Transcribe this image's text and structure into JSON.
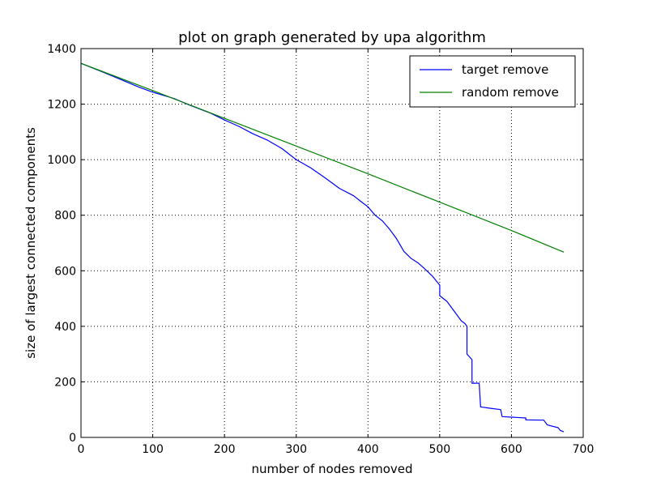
{
  "chart_data": {
    "type": "line",
    "title": "plot on graph generated by upa algorithm",
    "xlabel": "number of nodes removed",
    "ylabel": "size of largest connected components",
    "xlim": [
      0,
      700
    ],
    "ylim": [
      0,
      1400
    ],
    "xticks": [
      0,
      100,
      200,
      300,
      400,
      500,
      600,
      700
    ],
    "yticks": [
      0,
      200,
      400,
      600,
      800,
      1000,
      1200,
      1400
    ],
    "grid": true,
    "legend_position": "top-right",
    "series": [
      {
        "name": "target remove",
        "color": "#0000ff",
        "points": [
          [
            0,
            1347
          ],
          [
            30,
            1316
          ],
          [
            60,
            1284
          ],
          [
            80,
            1262
          ],
          [
            100,
            1243
          ],
          [
            130,
            1220
          ],
          [
            150,
            1198
          ],
          [
            180,
            1168
          ],
          [
            200,
            1143
          ],
          [
            220,
            1120
          ],
          [
            240,
            1093
          ],
          [
            260,
            1070
          ],
          [
            280,
            1040
          ],
          [
            300,
            1000
          ],
          [
            320,
            971
          ],
          [
            340,
            935
          ],
          [
            360,
            897
          ],
          [
            380,
            870
          ],
          [
            390,
            850
          ],
          [
            400,
            830
          ],
          [
            410,
            800
          ],
          [
            420,
            780
          ],
          [
            430,
            750
          ],
          [
            440,
            715
          ],
          [
            450,
            670
          ],
          [
            460,
            645
          ],
          [
            470,
            628
          ],
          [
            480,
            605
          ],
          [
            490,
            580
          ],
          [
            500,
            548
          ],
          [
            500,
            510
          ],
          [
            510,
            490
          ],
          [
            520,
            455
          ],
          [
            530,
            420
          ],
          [
            535,
            410
          ],
          [
            538,
            400
          ],
          [
            538,
            300
          ],
          [
            545,
            280
          ],
          [
            545,
            195
          ],
          [
            555,
            195
          ],
          [
            557,
            110
          ],
          [
            570,
            105
          ],
          [
            585,
            100
          ],
          [
            587,
            75
          ],
          [
            600,
            73
          ],
          [
            620,
            70
          ],
          [
            620,
            63
          ],
          [
            645,
            62
          ],
          [
            650,
            45
          ],
          [
            665,
            35
          ],
          [
            668,
            25
          ],
          [
            673,
            20
          ]
        ]
      },
      {
        "name": "random remove",
        "color": "#008000",
        "points": [
          [
            0,
            1347
          ],
          [
            100,
            1249
          ],
          [
            200,
            1149
          ],
          [
            300,
            1049
          ],
          [
            400,
            949
          ],
          [
            500,
            847
          ],
          [
            600,
            745
          ],
          [
            673,
            667
          ]
        ]
      }
    ]
  }
}
